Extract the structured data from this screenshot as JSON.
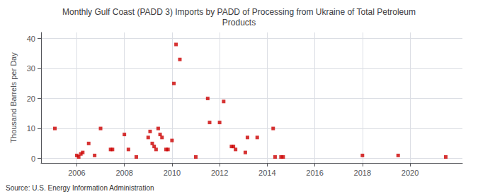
{
  "chart_data": {
    "type": "scatter",
    "title": "Monthly Gulf Coast (PADD 3) Imports by PADD of Processing from Ukraine of Total Petroleum\nProducts",
    "ylabel": "Thousand Barrels per Day",
    "annotation": "Source: U.S. Energy Information Administration",
    "color": "#cc0000",
    "marker": "square",
    "grid": true,
    "xlim": [
      2004.5,
      2022.2
    ],
    "ylim": [
      -1.5,
      42
    ],
    "xticks": [
      2006,
      2008,
      2010,
      2012,
      2014,
      2016,
      2018,
      2020
    ],
    "yticks": [
      0,
      10,
      20,
      30,
      40
    ],
    "x": [
      2005.08,
      2006.0,
      2006.08,
      2006.17,
      2006.25,
      2006.5,
      2006.75,
      2007.0,
      2007.42,
      2007.5,
      2008.0,
      2008.17,
      2008.5,
      2009.0,
      2009.08,
      2009.17,
      2009.25,
      2009.33,
      2009.42,
      2009.5,
      2009.58,
      2009.75,
      2009.83,
      2010.0,
      2010.08,
      2010.17,
      2010.33,
      2011.0,
      2011.5,
      2011.58,
      2012.0,
      2012.17,
      2012.5,
      2012.58,
      2012.67,
      2013.08,
      2013.17,
      2013.58,
      2014.25,
      2014.33,
      2014.58,
      2014.67,
      2018.0,
      2019.5,
      2021.5
    ],
    "values": [
      10,
      1,
      0.5,
      1.5,
      2,
      5,
      1,
      10,
      3,
      3,
      8,
      3,
      0.5,
      7,
      9,
      5,
      4,
      3,
      10,
      8,
      7,
      3,
      3,
      6,
      25,
      38,
      33,
      0.5,
      20,
      12,
      12,
      19,
      4,
      4,
      3,
      2,
      7,
      7,
      10,
      0.5,
      0.5,
      0.5,
      1,
      1,
      0.5
    ]
  }
}
